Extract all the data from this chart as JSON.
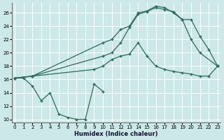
{
  "xlabel": "Humidex (Indice chaleur)",
  "bg_color": "#cce8e8",
  "grid_color": "#b8d8d8",
  "line_color": "#2d6b5e",
  "xlim": [
    -0.3,
    23.3
  ],
  "ylim": [
    9.5,
    27.5
  ],
  "xticks": [
    0,
    1,
    2,
    3,
    4,
    5,
    6,
    7,
    8,
    9,
    10,
    11,
    12,
    13,
    14,
    15,
    16,
    17,
    18,
    19,
    20,
    21,
    22,
    23
  ],
  "yticks": [
    10,
    12,
    14,
    16,
    18,
    20,
    22,
    24,
    26
  ],
  "s1x": [
    0,
    1,
    2,
    3,
    4,
    5,
    6,
    7,
    8,
    9,
    10
  ],
  "s1y": [
    16.2,
    16.2,
    15.0,
    12.8,
    14.0,
    10.8,
    10.3,
    10.0,
    10.0,
    15.3,
    14.2
  ],
  "s2x": [
    0,
    2,
    9,
    10,
    11,
    12,
    13,
    14,
    15,
    16,
    17,
    18,
    19,
    20,
    21,
    22,
    23
  ],
  "s2y": [
    16.2,
    16.5,
    17.5,
    18.0,
    19.0,
    19.5,
    19.8,
    21.5,
    19.5,
    18.0,
    17.5,
    17.2,
    17.0,
    16.8,
    16.5,
    16.5,
    18.0
  ],
  "s3x": [
    0,
    2,
    10,
    11,
    12,
    13,
    14,
    15,
    16,
    17,
    18,
    19,
    20,
    21,
    23
  ],
  "s3y": [
    16.2,
    16.5,
    21.5,
    22.0,
    23.5,
    24.0,
    26.0,
    26.3,
    27.0,
    26.8,
    26.0,
    25.0,
    22.0,
    20.0,
    18.0
  ],
  "s4x": [
    0,
    2,
    10,
    11,
    12,
    13,
    14,
    15,
    16,
    17,
    18,
    19,
    20,
    21,
    22,
    23
  ],
  "s4y": [
    16.2,
    16.5,
    19.5,
    20.0,
    21.5,
    23.8,
    25.8,
    26.2,
    26.8,
    26.5,
    26.2,
    25.0,
    25.0,
    22.5,
    20.5,
    18.0
  ]
}
